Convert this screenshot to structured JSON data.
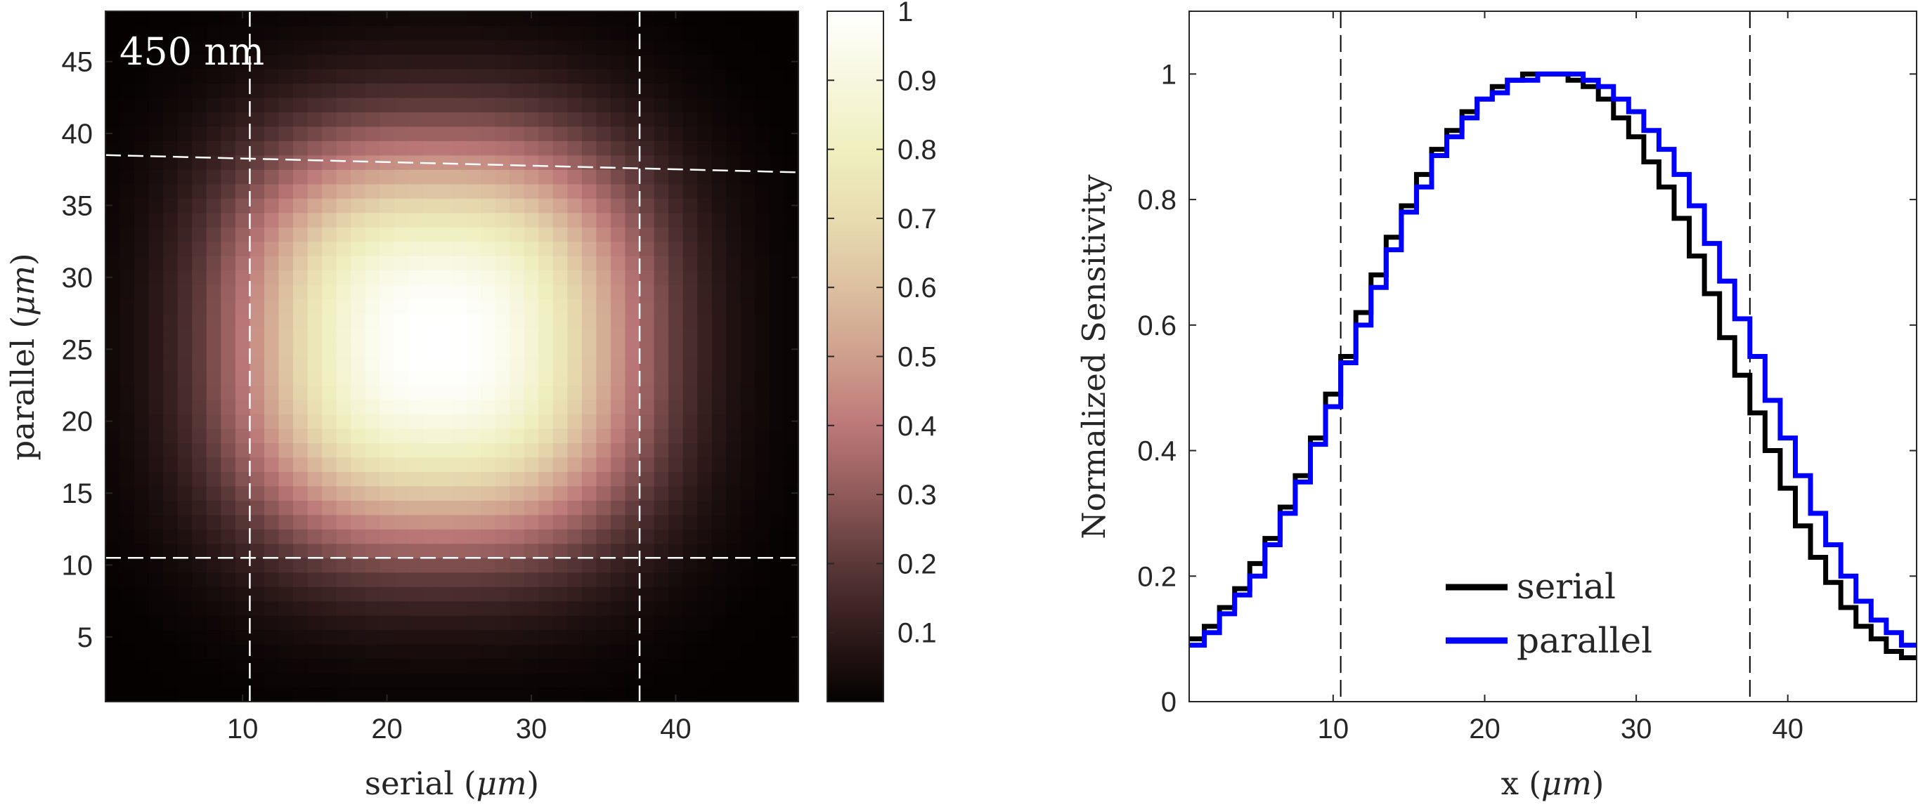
{
  "chart_data": [
    {
      "type": "heatmap",
      "panel_label": "450 nm",
      "xlabel_text": "serial (",
      "xlabel_unit": "μm",
      "xlabel_close": ")",
      "ylabel_text": "parallel (",
      "ylabel_unit": "μm",
      "ylabel_close": ")",
      "xlim": [
        0.5,
        48.5
      ],
      "ylim": [
        0.5,
        48.5
      ],
      "grid_size": 48,
      "peak": {
        "x": 23.5,
        "y": 25.5
      },
      "falloff": {
        "sigma_x": 13.9,
        "sigma_y": 13.9,
        "exponent": 2.6
      },
      "xticks": [
        10,
        20,
        30,
        40
      ],
      "yticks": [
        5,
        10,
        15,
        20,
        25,
        30,
        35,
        40,
        45
      ],
      "reference_lines": {
        "vertical_x": [
          10.5,
          37.5
        ],
        "horizontal_y": [
          10.5
        ],
        "tilted_line": {
          "x": [
            0.5,
            48.5
          ],
          "y": [
            38.5,
            37.3
          ]
        }
      },
      "colorbar": {
        "ticks": [
          0.1,
          0.2,
          0.3,
          0.4,
          0.5,
          0.6,
          0.7,
          0.8,
          0.9,
          1
        ],
        "lim": [
          0,
          1
        ],
        "colormap_stops": [
          [
            0.0,
            "#050101"
          ],
          [
            0.1,
            "#2f1a1a"
          ],
          [
            0.2,
            "#5b3838"
          ],
          [
            0.3,
            "#905a5a"
          ],
          [
            0.4,
            "#bc7878"
          ],
          [
            0.5,
            "#cf9f8d"
          ],
          [
            0.6,
            "#dcc0a0"
          ],
          [
            0.7,
            "#e8dcb0"
          ],
          [
            0.8,
            "#efefc0"
          ],
          [
            0.9,
            "#f7f7de"
          ],
          [
            1.0,
            "#ffffff"
          ]
        ]
      }
    },
    {
      "type": "line",
      "step": true,
      "xlabel_text": "x (",
      "xlabel_unit": "μm",
      "xlabel_close": ")",
      "ylabel": "Normalized Sensitivity",
      "xlim": [
        0.5,
        48.5
      ],
      "ylim": [
        0,
        1.1
      ],
      "xticks": [
        10,
        20,
        30,
        40
      ],
      "yticks": [
        0,
        0.2,
        0.4,
        0.6,
        0.8,
        1
      ],
      "reference_lines": {
        "vertical_x": [
          10.5,
          37.5
        ]
      },
      "x": [
        1,
        2,
        3,
        4,
        5,
        6,
        7,
        8,
        9,
        10,
        11,
        12,
        13,
        14,
        15,
        16,
        17,
        18,
        19,
        20,
        21,
        22,
        23,
        24,
        25,
        26,
        27,
        28,
        29,
        30,
        31,
        32,
        33,
        34,
        35,
        36,
        37,
        38,
        39,
        40,
        41,
        42,
        43,
        44,
        45,
        46,
        47,
        48
      ],
      "series": [
        {
          "name": "serial",
          "color": "#000000",
          "values": [
            0.1,
            0.12,
            0.15,
            0.18,
            0.22,
            0.26,
            0.31,
            0.36,
            0.42,
            0.49,
            0.55,
            0.62,
            0.68,
            0.74,
            0.79,
            0.84,
            0.88,
            0.91,
            0.94,
            0.96,
            0.98,
            0.99,
            1.0,
            1.0,
            1.0,
            0.99,
            0.98,
            0.96,
            0.93,
            0.9,
            0.86,
            0.82,
            0.77,
            0.71,
            0.65,
            0.58,
            0.52,
            0.46,
            0.4,
            0.34,
            0.28,
            0.23,
            0.19,
            0.15,
            0.12,
            0.1,
            0.08,
            0.07
          ]
        },
        {
          "name": "parallel",
          "color": "#0000ff",
          "values": [
            0.09,
            0.11,
            0.14,
            0.17,
            0.2,
            0.25,
            0.3,
            0.35,
            0.41,
            0.47,
            0.54,
            0.6,
            0.66,
            0.72,
            0.78,
            0.82,
            0.87,
            0.9,
            0.93,
            0.96,
            0.97,
            0.99,
            0.99,
            1.0,
            1.0,
            1.0,
            0.99,
            0.98,
            0.96,
            0.94,
            0.91,
            0.88,
            0.84,
            0.79,
            0.73,
            0.67,
            0.61,
            0.55,
            0.48,
            0.42,
            0.36,
            0.3,
            0.25,
            0.2,
            0.16,
            0.13,
            0.11,
            0.09
          ]
        }
      ],
      "legend_position": "bottom-center"
    }
  ]
}
